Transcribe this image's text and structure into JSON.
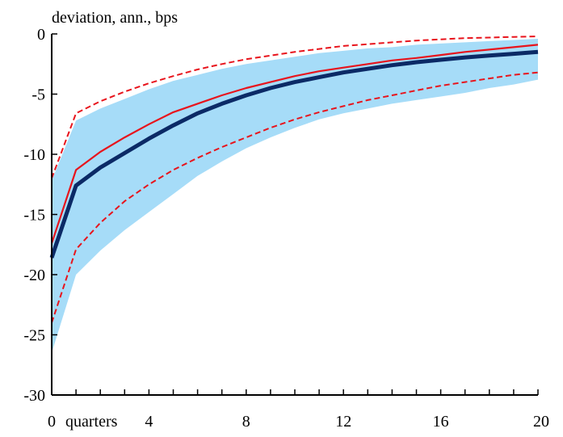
{
  "chart_data": {
    "type": "line",
    "title": "deviation, ann., bps",
    "xlabel": "quarters",
    "ylabel": "",
    "xlim": [
      0,
      20
    ],
    "ylim": [
      -30,
      0
    ],
    "x_ticks": [
      0,
      4,
      8,
      12,
      16,
      20
    ],
    "y_ticks": [
      0,
      -5,
      -10,
      -15,
      -20,
      -25,
      -30
    ],
    "grid": false,
    "legend": "none",
    "colors": {
      "band": "#a6dcf8",
      "median": "#0b2a66",
      "alt": "#e8141c",
      "alt_bounds": "#e8141c"
    },
    "x": [
      0,
      1,
      2,
      3,
      4,
      5,
      6,
      7,
      8,
      9,
      10,
      11,
      12,
      13,
      14,
      15,
      16,
      17,
      18,
      19,
      20
    ],
    "band": {
      "upper": [
        -12.2,
        -7.2,
        -6.2,
        -5.4,
        -4.6,
        -3.9,
        -3.4,
        -2.9,
        -2.5,
        -2.2,
        -1.9,
        -1.6,
        -1.4,
        -1.2,
        -1.1,
        -0.9,
        -0.8,
        -0.7,
        -0.6,
        -0.5,
        -0.4
      ],
      "lower": [
        -26.5,
        -20.0,
        -18.0,
        -16.3,
        -14.8,
        -13.3,
        -11.8,
        -10.6,
        -9.5,
        -8.6,
        -7.8,
        -7.1,
        -6.6,
        -6.2,
        -5.8,
        -5.5,
        -5.2,
        -4.9,
        -4.5,
        -4.2,
        -3.8
      ]
    },
    "series": [
      {
        "role": "median",
        "values": [
          -18.6,
          -12.6,
          -11.1,
          -9.9,
          -8.7,
          -7.6,
          -6.6,
          -5.8,
          -5.1,
          -4.5,
          -4.0,
          -3.6,
          -3.2,
          -2.9,
          -2.6,
          -2.35,
          -2.15,
          -1.95,
          -1.8,
          -1.65,
          -1.5
        ]
      },
      {
        "role": "alt",
        "values": [
          -17.4,
          -11.3,
          -9.8,
          -8.6,
          -7.5,
          -6.5,
          -5.8,
          -5.1,
          -4.5,
          -4.0,
          -3.5,
          -3.1,
          -2.8,
          -2.5,
          -2.2,
          -2.0,
          -1.75,
          -1.5,
          -1.3,
          -1.1,
          -0.9
        ]
      },
      {
        "role": "alt_upper",
        "values": [
          -12.0,
          -6.6,
          -5.6,
          -4.8,
          -4.1,
          -3.5,
          -2.95,
          -2.5,
          -2.1,
          -1.8,
          -1.5,
          -1.25,
          -1.0,
          -0.85,
          -0.7,
          -0.55,
          -0.45,
          -0.35,
          -0.3,
          -0.25,
          -0.2
        ]
      },
      {
        "role": "alt_lower",
        "values": [
          -24.0,
          -17.9,
          -15.7,
          -13.9,
          -12.5,
          -11.3,
          -10.3,
          -9.4,
          -8.6,
          -7.8,
          -7.1,
          -6.5,
          -6.0,
          -5.5,
          -5.1,
          -4.7,
          -4.3,
          -4.0,
          -3.7,
          -3.4,
          -3.2
        ]
      }
    ]
  }
}
